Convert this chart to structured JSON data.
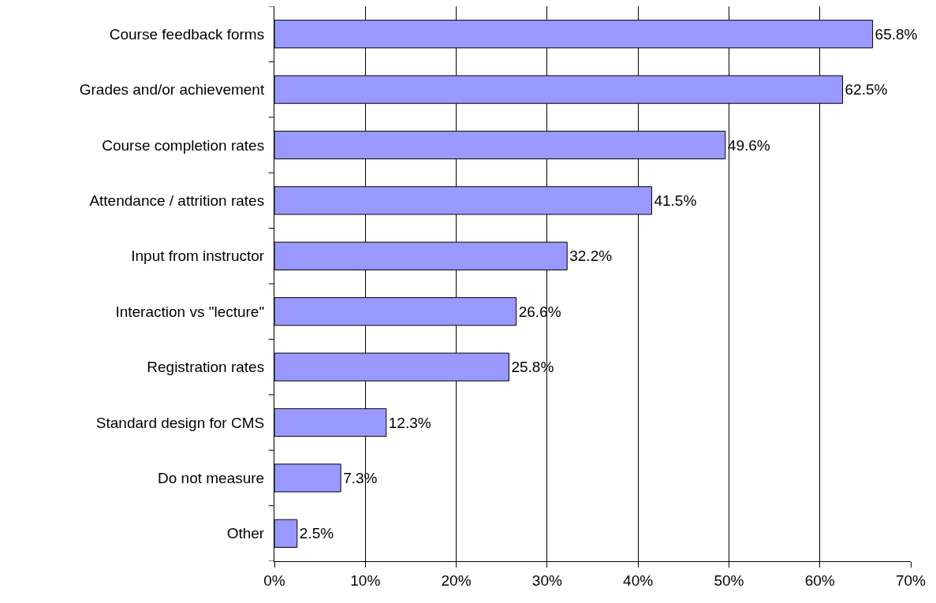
{
  "chart_data": {
    "type": "bar",
    "orientation": "horizontal",
    "categories": [
      "Course feedback forms",
      "Grades and/or achievement",
      "Course completion rates",
      "Attendance / attrition rates",
      "Input from instructor",
      "Interaction vs \"lecture\"",
      "Registration rates",
      "Standard design for CMS",
      "Do not measure",
      "Other"
    ],
    "values": [
      65.8,
      62.5,
      49.6,
      41.5,
      32.2,
      26.6,
      25.8,
      12.3,
      7.3,
      2.5
    ],
    "value_labels": [
      "65.8%",
      "62.5%",
      "49.6%",
      "41.5%",
      "32.2%",
      "26.6%",
      "25.8%",
      "12.3%",
      "7.3%",
      "2.5%"
    ],
    "color": "#9999ff",
    "xlim": [
      0,
      70
    ],
    "xticks": [
      {
        "value": 0,
        "label": "0%"
      },
      {
        "value": 10,
        "label": "10%"
      },
      {
        "value": 20,
        "label": "20%"
      },
      {
        "value": 30,
        "label": "30%"
      },
      {
        "value": 40,
        "label": "40%"
      },
      {
        "value": 50,
        "label": "50%"
      },
      {
        "value": 60,
        "label": "60%"
      },
      {
        "value": 70,
        "label": "70%"
      }
    ],
    "grid": "x"
  }
}
